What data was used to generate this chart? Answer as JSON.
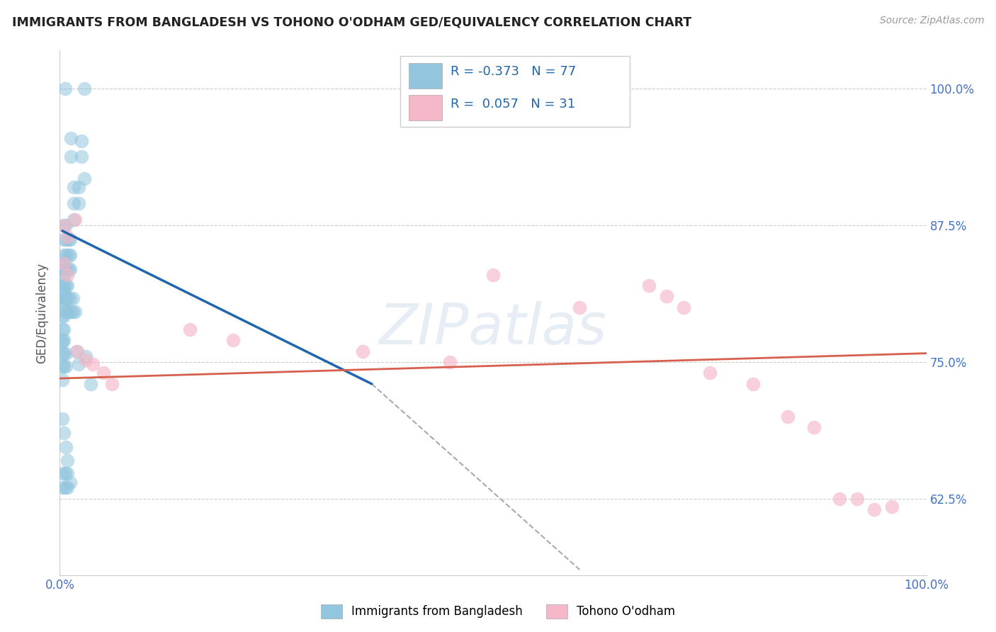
{
  "title": "IMMIGRANTS FROM BANGLADESH VS TOHONO O'ODHAM GED/EQUIVALENCY CORRELATION CHART",
  "source": "Source: ZipAtlas.com",
  "ylabel": "GED/Equivalency",
  "ytick_labels": [
    "100.0%",
    "87.5%",
    "75.0%",
    "62.5%"
  ],
  "ytick_values": [
    1.0,
    0.875,
    0.75,
    0.625
  ],
  "xtick_labels": [
    "0.0%",
    "100.0%"
  ],
  "xtick_values": [
    0.0,
    1.0
  ],
  "legend_line1": "R = -0.373   N = 77",
  "legend_line2": "R =  0.057   N = 31",
  "color_blue": "#92c5de",
  "color_pink": "#f4b8c8",
  "line_blue": "#2166ac",
  "line_pink": "#d6604d",
  "line_dashed_color": "#aaaaaa",
  "watermark": "ZIPatlas",
  "blue_points_x": [
    0.006,
    0.028,
    0.013,
    0.013,
    0.025,
    0.025,
    0.016,
    0.016,
    0.016,
    0.022,
    0.022,
    0.028,
    0.005,
    0.005,
    0.005,
    0.005,
    0.005,
    0.005,
    0.007,
    0.007,
    0.007,
    0.007,
    0.01,
    0.01,
    0.01,
    0.012,
    0.012,
    0.012,
    0.003,
    0.003,
    0.003,
    0.003,
    0.003,
    0.003,
    0.003,
    0.005,
    0.005,
    0.005,
    0.005,
    0.005,
    0.005,
    0.007,
    0.007,
    0.007,
    0.009,
    0.009,
    0.009,
    0.012,
    0.012,
    0.015,
    0.015,
    0.018,
    0.003,
    0.003,
    0.003,
    0.003,
    0.005,
    0.005,
    0.005,
    0.007,
    0.007,
    0.019,
    0.022,
    0.03,
    0.036,
    0.003,
    0.005,
    0.007,
    0.009,
    0.003,
    0.003,
    0.006,
    0.006,
    0.009,
    0.009,
    0.012
  ],
  "blue_points_y": [
    1.0,
    1.0,
    0.955,
    0.938,
    0.938,
    0.952,
    0.91,
    0.895,
    0.88,
    0.91,
    0.895,
    0.918,
    0.875,
    0.862,
    0.848,
    0.835,
    0.82,
    0.808,
    0.875,
    0.862,
    0.848,
    0.835,
    0.862,
    0.848,
    0.835,
    0.862,
    0.848,
    0.835,
    0.84,
    0.828,
    0.816,
    0.804,
    0.792,
    0.78,
    0.768,
    0.84,
    0.828,
    0.816,
    0.804,
    0.792,
    0.78,
    0.82,
    0.808,
    0.796,
    0.82,
    0.808,
    0.796,
    0.808,
    0.796,
    0.808,
    0.796,
    0.796,
    0.77,
    0.758,
    0.746,
    0.734,
    0.77,
    0.758,
    0.746,
    0.758,
    0.746,
    0.76,
    0.748,
    0.755,
    0.73,
    0.698,
    0.685,
    0.672,
    0.66,
    0.648,
    0.635,
    0.648,
    0.635,
    0.648,
    0.635,
    0.64
  ],
  "pink_points_x": [
    0.005,
    0.009,
    0.005,
    0.009,
    0.018,
    0.02,
    0.03,
    0.038,
    0.05,
    0.06,
    0.5,
    0.6,
    0.68,
    0.7,
    0.72,
    0.75,
    0.8,
    0.84,
    0.87,
    0.9,
    0.92,
    0.94,
    0.96,
    0.35,
    0.45,
    0.15,
    0.2
  ],
  "pink_points_y": [
    0.875,
    0.865,
    0.84,
    0.83,
    0.88,
    0.76,
    0.752,
    0.748,
    0.74,
    0.73,
    0.83,
    0.8,
    0.82,
    0.81,
    0.8,
    0.74,
    0.73,
    0.7,
    0.69,
    0.625,
    0.625,
    0.615,
    0.618,
    0.76,
    0.75,
    0.78,
    0.77
  ],
  "blue_line_x": [
    0.003,
    0.36
  ],
  "blue_line_y": [
    0.87,
    0.73
  ],
  "dashed_line_x": [
    0.36,
    0.6
  ],
  "dashed_line_y": [
    0.73,
    0.56
  ],
  "pink_line_x": [
    0.0,
    1.0
  ],
  "pink_line_y": [
    0.735,
    0.758
  ],
  "xlim": [
    0.0,
    1.0
  ],
  "ylim": [
    0.555,
    1.035
  ]
}
